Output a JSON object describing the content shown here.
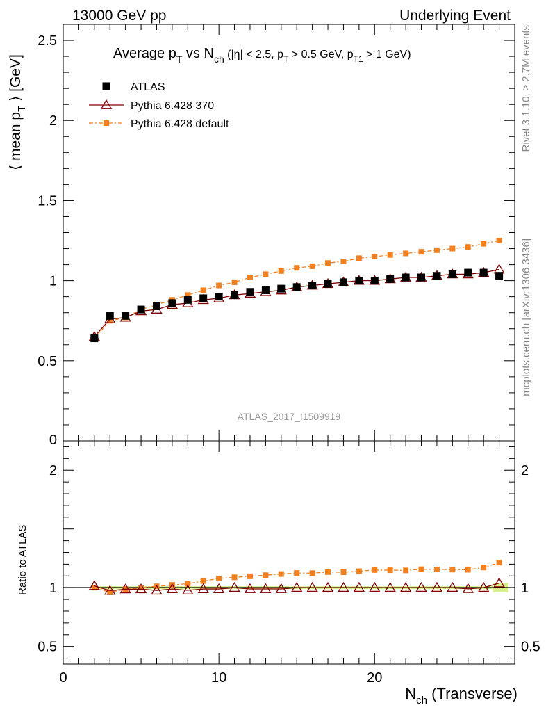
{
  "header": {
    "left": "13000 GeV pp",
    "right": "Underlying Event"
  },
  "side_labels": {
    "rivet": "Rivet 3.1.10, ≥ 2.7M events",
    "mcplots": "mcplots.cern.ch [arXiv:1306.3436]"
  },
  "analysis_id": "ATLAS_2017_I1509919",
  "chart_data": {
    "type": "scatter",
    "title": "Average pT vs Nch (|η| < 2.5, pT > 0.5 GeV, pT1 > 1 GeV)",
    "title_parts": {
      "a": "Average p",
      "a_sub": "T",
      "b": " vs N",
      "b_sub": "ch",
      "c": " (|η| < 2.5, p",
      "c_sub": "T",
      "d": " > 0.5 GeV, p",
      "d_sub": "T1",
      "e": " > 1 GeV)"
    },
    "xlabel": "Nch (Transverse)",
    "xlabel_parts": {
      "main": "N",
      "sub": "ch",
      "rest": " (Transverse)"
    },
    "ylabel": "⟨ mean pT ⟩ [GeV]",
    "ylabel_parts": {
      "pre": "⟨ mean p",
      "sub": "T",
      "post": " ⟩ [GeV]"
    },
    "ratio_ylabel": "Ratio to ATLAS",
    "xlim": [
      0,
      29
    ],
    "ylim": [
      0,
      2.6
    ],
    "ratio_ylim": [
      0.35,
      2.25
    ],
    "x_ticks": [
      0,
      10,
      20
    ],
    "y_ticks": [
      0.5,
      1,
      1.5,
      2,
      2.5
    ],
    "y_tick_labels": [
      "0.5",
      "1",
      "1.5",
      "2",
      "2.5"
    ],
    "y_zero_label": "0",
    "ratio_ticks": [
      0.5,
      1,
      2
    ],
    "ratio_tick_labels": [
      "0.5",
      "1",
      "2"
    ],
    "legend_position": "top-left",
    "x": [
      2,
      3,
      4,
      5,
      6,
      7,
      8,
      9,
      10,
      11,
      12,
      13,
      14,
      15,
      16,
      17,
      18,
      19,
      20,
      21,
      22,
      23,
      24,
      25,
      26,
      27,
      28
    ],
    "series": [
      {
        "name": "ATLAS",
        "color": "#000000",
        "marker": "square",
        "values": [
          0.64,
          0.78,
          0.78,
          0.82,
          0.84,
          0.86,
          0.88,
          0.89,
          0.9,
          0.91,
          0.93,
          0.94,
          0.95,
          0.96,
          0.97,
          0.98,
          0.99,
          1.0,
          1.0,
          1.01,
          1.02,
          1.02,
          1.03,
          1.04,
          1.05,
          1.05,
          1.03
        ]
      },
      {
        "name": "Pythia 6.428 370",
        "color": "#800000",
        "marker": "triangle-open",
        "values": [
          0.65,
          0.76,
          0.77,
          0.81,
          0.82,
          0.85,
          0.86,
          0.88,
          0.89,
          0.91,
          0.92,
          0.93,
          0.94,
          0.96,
          0.97,
          0.98,
          0.99,
          1.0,
          1.0,
          1.01,
          1.02,
          1.02,
          1.03,
          1.04,
          1.04,
          1.05,
          1.07
        ]
      },
      {
        "name": "Pythia 6.428 default",
        "color": "#f08020",
        "marker": "square-small",
        "values": [
          0.64,
          0.75,
          0.77,
          0.82,
          0.85,
          0.88,
          0.91,
          0.94,
          0.97,
          0.99,
          1.02,
          1.04,
          1.06,
          1.08,
          1.09,
          1.11,
          1.12,
          1.14,
          1.15,
          1.16,
          1.17,
          1.18,
          1.19,
          1.2,
          1.21,
          1.23,
          1.25
        ]
      }
    ]
  }
}
